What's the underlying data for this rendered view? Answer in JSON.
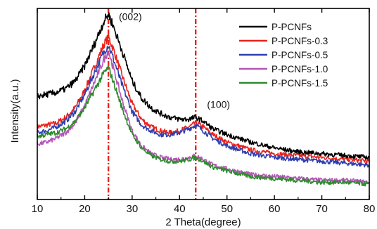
{
  "chart_data": {
    "type": "line",
    "xlabel": "2 Theta(degree)",
    "ylabel": "Intensity(a.u.)",
    "xlim": [
      10,
      80
    ],
    "xticks": [
      10,
      20,
      30,
      40,
      50,
      60,
      70,
      80
    ],
    "ylim": [
      0,
      1
    ],
    "yticks_shown": false,
    "grid": false,
    "legend_position": "top-right",
    "vlines": [
      25,
      43.4
    ],
    "annotations": [
      {
        "text": "(002)",
        "x": 27.2,
        "y": 0.94
      },
      {
        "text": "(100)",
        "x": 45.8,
        "y": 0.48
      }
    ],
    "series": [
      {
        "name": "P-PCNFs",
        "color": "#000000",
        "x": [
          10,
          12,
          14,
          16,
          18,
          20,
          22,
          24,
          25,
          26,
          28,
          30,
          32,
          34,
          36,
          38,
          40,
          42,
          43.4,
          45,
          47,
          50,
          55,
          60,
          65,
          70,
          75,
          80
        ],
        "y": [
          0.54,
          0.55,
          0.56,
          0.58,
          0.62,
          0.7,
          0.81,
          0.93,
          0.97,
          0.91,
          0.77,
          0.62,
          0.53,
          0.48,
          0.45,
          0.43,
          0.42,
          0.42,
          0.43,
          0.41,
          0.37,
          0.34,
          0.3,
          0.27,
          0.25,
          0.24,
          0.23,
          0.22
        ]
      },
      {
        "name": "P-PCNFs-0.3",
        "color": "#e8231b",
        "x": [
          10,
          12,
          14,
          16,
          18,
          20,
          22,
          24,
          25,
          26,
          28,
          30,
          32,
          34,
          36,
          38,
          40,
          42,
          43.4,
          45,
          47,
          50,
          55,
          60,
          65,
          70,
          75,
          80
        ],
        "y": [
          0.38,
          0.39,
          0.4,
          0.43,
          0.48,
          0.57,
          0.69,
          0.81,
          0.85,
          0.79,
          0.64,
          0.5,
          0.42,
          0.38,
          0.36,
          0.35,
          0.36,
          0.38,
          0.4,
          0.38,
          0.34,
          0.3,
          0.26,
          0.24,
          0.23,
          0.22,
          0.21,
          0.2
        ]
      },
      {
        "name": "P-PCNFs-0.5",
        "color": "#2f3fb0",
        "x": [
          10,
          12,
          14,
          16,
          18,
          20,
          22,
          24,
          25,
          26,
          28,
          30,
          32,
          34,
          36,
          38,
          40,
          42,
          43.4,
          45,
          47,
          50,
          55,
          60,
          65,
          70,
          75,
          80
        ],
        "y": [
          0.35,
          0.36,
          0.38,
          0.41,
          0.46,
          0.55,
          0.66,
          0.77,
          0.81,
          0.74,
          0.59,
          0.46,
          0.39,
          0.36,
          0.34,
          0.34,
          0.35,
          0.37,
          0.39,
          0.36,
          0.32,
          0.28,
          0.24,
          0.22,
          0.21,
          0.2,
          0.19,
          0.18
        ]
      },
      {
        "name": "P-PCNFs-1.0",
        "color": "#b455b6",
        "x": [
          10,
          12,
          14,
          16,
          18,
          20,
          22,
          24,
          25,
          26,
          28,
          30,
          32,
          34,
          36,
          38,
          40,
          42,
          43.4,
          45,
          47,
          50,
          55,
          60,
          65,
          70,
          75,
          80
        ],
        "y": [
          0.29,
          0.3,
          0.32,
          0.35,
          0.4,
          0.49,
          0.61,
          0.73,
          0.78,
          0.69,
          0.51,
          0.36,
          0.28,
          0.24,
          0.22,
          0.21,
          0.21,
          0.22,
          0.23,
          0.21,
          0.18,
          0.16,
          0.13,
          0.12,
          0.11,
          0.1,
          0.1,
          0.09
        ]
      },
      {
        "name": "P-PCNFs-1.5",
        "color": "#2e8b2e",
        "x": [
          10,
          12,
          14,
          16,
          18,
          20,
          22,
          24,
          25,
          26,
          28,
          30,
          32,
          34,
          36,
          38,
          40,
          42,
          43.4,
          45,
          47,
          50,
          55,
          60,
          65,
          70,
          75,
          80
        ],
        "y": [
          0.33,
          0.34,
          0.35,
          0.37,
          0.41,
          0.48,
          0.57,
          0.66,
          0.69,
          0.62,
          0.47,
          0.34,
          0.27,
          0.23,
          0.21,
          0.2,
          0.2,
          0.21,
          0.22,
          0.2,
          0.17,
          0.15,
          0.12,
          0.11,
          0.1,
          0.09,
          0.09,
          0.08
        ]
      }
    ]
  }
}
